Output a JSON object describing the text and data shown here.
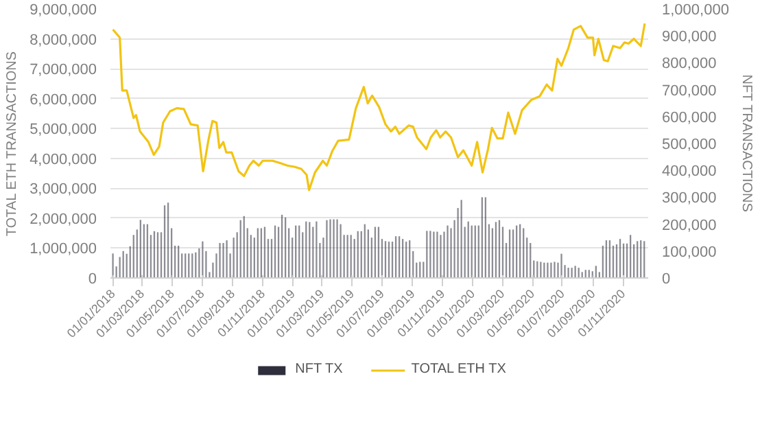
{
  "chart_data": {
    "type": "bar",
    "xlabel": null,
    "ylabel": "TOTAL ETH TRANSACTIONS",
    "y2label": "NFT TRANSACTIONS",
    "xlim": [
      "2017-12-27",
      "2020-12-22"
    ],
    "xticks": [
      {
        "value": "2018-01-01",
        "label": "01/01/2018"
      },
      {
        "value": "2018-03-01",
        "label": "01/03/2018"
      },
      {
        "value": "2018-05-01",
        "label": "01/05/2018"
      },
      {
        "value": "2018-07-01",
        "label": "01/07/2018"
      },
      {
        "value": "2018-09-01",
        "label": "01/09/2018"
      },
      {
        "value": "2018-11-01",
        "label": "01/11/2018"
      },
      {
        "value": "2019-01-01",
        "label": "01/01/2019"
      },
      {
        "value": "2019-03-01",
        "label": "01/03/2019"
      },
      {
        "value": "2019-05-01",
        "label": "01/05/2019"
      },
      {
        "value": "2019-07-01",
        "label": "01/07/2019"
      },
      {
        "value": "2019-09-01",
        "label": "01/09/2019"
      },
      {
        "value": "2019-11-01",
        "label": "01/11/2019"
      },
      {
        "value": "2020-01-01",
        "label": "01/01/2020"
      },
      {
        "value": "2020-03-01",
        "label": "01/03/2020"
      },
      {
        "value": "2020-05-01",
        "label": "01/05/2020"
      },
      {
        "value": "2020-07-01",
        "label": "01/07/2020"
      },
      {
        "value": "2020-09-01",
        "label": "01/09/2020"
      },
      {
        "value": "2020-11-01",
        "label": "01/11/2020"
      }
    ],
    "ylim": [
      0,
      9000000
    ],
    "yticks": [
      0,
      {
        "value": 1000000,
        "label": "1,000,000"
      },
      {
        "value": 2000000,
        "label": "2,000,000"
      },
      {
        "value": 3000000,
        "label": "3,000,000"
      },
      {
        "value": 4000000,
        "label": "4,000,000"
      },
      {
        "value": 5000000,
        "label": "5,000,000"
      },
      {
        "value": 6000000,
        "label": "6,000,000"
      },
      {
        "value": 7000000,
        "label": "7,000,000"
      },
      {
        "value": 8000000,
        "label": "8,000,000"
      },
      {
        "value": 9000000,
        "label": "9,000,000"
      }
    ],
    "y2lim": [
      0,
      1000000
    ],
    "y2ticks": [
      0,
      {
        "value": 100000,
        "label": "100,000"
      },
      {
        "value": 200000,
        "label": "200,000"
      },
      {
        "value": 300000,
        "label": "300,000"
      },
      {
        "value": 400000,
        "label": "400,000"
      },
      {
        "value": 500000,
        "label": "500,000"
      },
      {
        "value": 600000,
        "label": "600,000"
      },
      {
        "value": 700000,
        "label": "700,000"
      },
      {
        "value": 800000,
        "label": "800,000"
      },
      {
        "value": 900000,
        "label": "900,000"
      },
      {
        "value": 1000000,
        "label": "1,000,000"
      }
    ],
    "grid": "y",
    "legend": "bottom",
    "series": [
      {
        "name": "NFT TX",
        "axis": "y2",
        "color": "#2e2e3c",
        "x": [
          "2018-01-01",
          "2018-01-08",
          "2018-01-15",
          "2018-01-22",
          "2018-01-29",
          "2018-02-05",
          "2018-02-12",
          "2018-02-19",
          "2018-02-26",
          "2018-03-05",
          "2018-03-12",
          "2018-03-19",
          "2018-03-26",
          "2018-04-02",
          "2018-04-09",
          "2018-04-16",
          "2018-04-23",
          "2018-04-30",
          "2018-05-07",
          "2018-05-14",
          "2018-05-21",
          "2018-05-28",
          "2018-06-04",
          "2018-06-11",
          "2018-06-18",
          "2018-06-25",
          "2018-07-02",
          "2018-07-09",
          "2018-07-16",
          "2018-07-23",
          "2018-07-30",
          "2018-08-06",
          "2018-08-13",
          "2018-08-20",
          "2018-08-27",
          "2018-09-03",
          "2018-09-10",
          "2018-09-17",
          "2018-09-24",
          "2018-10-01",
          "2018-10-08",
          "2018-10-15",
          "2018-10-22",
          "2018-10-29",
          "2018-11-05",
          "2018-11-12",
          "2018-11-19",
          "2018-11-26",
          "2018-12-03",
          "2018-12-10",
          "2018-12-17",
          "2018-12-24",
          "2018-12-31",
          "2019-01-07",
          "2019-01-14",
          "2019-01-21",
          "2019-01-28",
          "2019-02-04",
          "2019-02-11",
          "2019-02-18",
          "2019-02-25",
          "2019-03-04",
          "2019-03-11",
          "2019-03-18",
          "2019-03-25",
          "2019-04-01",
          "2019-04-08",
          "2019-04-15",
          "2019-04-22",
          "2019-04-29",
          "2019-05-06",
          "2019-05-13",
          "2019-05-20",
          "2019-05-27",
          "2019-06-03",
          "2019-06-10",
          "2019-06-17",
          "2019-06-24",
          "2019-07-01",
          "2019-07-08",
          "2019-07-15",
          "2019-07-22",
          "2019-07-29",
          "2019-08-05",
          "2019-08-12",
          "2019-08-19",
          "2019-08-26",
          "2019-09-02",
          "2019-09-09",
          "2019-09-16",
          "2019-09-23",
          "2019-09-30",
          "2019-10-07",
          "2019-10-14",
          "2019-10-21",
          "2019-10-28",
          "2019-11-04",
          "2019-11-11",
          "2019-11-18",
          "2019-11-25",
          "2019-12-02",
          "2019-12-09",
          "2019-12-16",
          "2019-12-23",
          "2019-12-30",
          "2020-01-06",
          "2020-01-13",
          "2020-01-20",
          "2020-01-27",
          "2020-02-03",
          "2020-02-10",
          "2020-02-17",
          "2020-02-24",
          "2020-03-02",
          "2020-03-09",
          "2020-03-16",
          "2020-03-23",
          "2020-03-30",
          "2020-04-06",
          "2020-04-13",
          "2020-04-20",
          "2020-04-27",
          "2020-05-04",
          "2020-05-11",
          "2020-05-18",
          "2020-05-25",
          "2020-06-01",
          "2020-06-08",
          "2020-06-15",
          "2020-06-22",
          "2020-06-29",
          "2020-07-06",
          "2020-07-13",
          "2020-07-20",
          "2020-07-27",
          "2020-08-03",
          "2020-08-10",
          "2020-08-17",
          "2020-08-24",
          "2020-08-31",
          "2020-09-07",
          "2020-09-14",
          "2020-09-21",
          "2020-09-28",
          "2020-10-05",
          "2020-10-12",
          "2020-10-19",
          "2020-10-26",
          "2020-11-02",
          "2020-11-09",
          "2020-11-16",
          "2020-11-23",
          "2020-11-30",
          "2020-12-07",
          "2020-12-14"
        ],
        "values": [
          91000,
          43000,
          78000,
          100000,
          90000,
          118000,
          160000,
          180000,
          216000,
          200000,
          200000,
          160000,
          174000,
          170000,
          170000,
          270000,
          280000,
          185000,
          120000,
          120000,
          91000,
          91000,
          91000,
          91000,
          95000,
          110000,
          136000,
          100000,
          22000,
          57000,
          91000,
          130000,
          130000,
          140000,
          91000,
          150000,
          170000,
          215000,
          230000,
          185000,
          160000,
          150000,
          185000,
          185000,
          190000,
          145000,
          145000,
          195000,
          190000,
          235000,
          225000,
          185000,
          150000,
          195000,
          195000,
          170000,
          210000,
          208000,
          190000,
          210000,
          130000,
          150000,
          215000,
          218000,
          218000,
          218000,
          200000,
          160000,
          160000,
          160000,
          145000,
          174000,
          174000,
          200000,
          180000,
          150000,
          190000,
          190000,
          145000,
          137000,
          135000,
          135000,
          155000,
          155000,
          145000,
          135000,
          140000,
          100000,
          57000,
          60000,
          60000,
          175000,
          175000,
          172000,
          172000,
          160000,
          172000,
          195000,
          185000,
          215000,
          260000,
          290000,
          190000,
          210000,
          195000,
          195000,
          195000,
          300000,
          300000,
          200000,
          185000,
          208000,
          215000,
          190000,
          130000,
          180000,
          180000,
          195000,
          200000,
          185000,
          150000,
          130000,
          65000,
          62000,
          60000,
          57000,
          57000,
          57000,
          60000,
          57000,
          90000,
          48000,
          38000,
          38000,
          45000,
          38000,
          22000,
          30000,
          30000,
          25000,
          45000,
          22000,
          120000,
          140000,
          140000,
          120000,
          125000,
          145000,
          128000,
          128000,
          160000,
          125000,
          137000,
          140000,
          137000
        ]
      },
      {
        "name": "TOTAL ETH TX",
        "type": "line",
        "color": "#f2c413",
        "x": [
          "2018-01-01",
          "2018-01-15",
          "2018-01-20",
          "2018-01-29",
          "2018-02-12",
          "2018-02-17",
          "2018-02-25",
          "2018-03-14",
          "2018-03-25",
          "2018-04-05",
          "2018-04-13",
          "2018-04-27",
          "2018-05-11",
          "2018-05-25",
          "2018-06-08",
          "2018-06-22",
          "2018-07-03",
          "2018-07-14",
          "2018-07-22",
          "2018-07-30",
          "2018-08-05",
          "2018-08-13",
          "2018-08-19",
          "2018-08-30",
          "2018-09-13",
          "2018-09-24",
          "2018-10-05",
          "2018-10-13",
          "2018-10-24",
          "2018-11-01",
          "2018-11-21",
          "2018-12-07",
          "2018-12-21",
          "2019-01-04",
          "2019-01-18",
          "2019-01-29",
          "2019-02-03",
          "2019-02-15",
          "2019-03-03",
          "2019-03-11",
          "2019-03-22",
          "2019-04-03",
          "2019-04-25",
          "2019-05-09",
          "2019-05-25",
          "2019-06-02",
          "2019-06-11",
          "2019-06-25",
          "2019-07-08",
          "2019-07-19",
          "2019-07-28",
          "2019-08-05",
          "2019-08-24",
          "2019-09-02",
          "2019-09-10",
          "2019-09-29",
          "2019-10-08",
          "2019-10-19",
          "2019-10-27",
          "2019-11-07",
          "2019-11-18",
          "2019-12-02",
          "2019-12-13",
          "2019-12-30",
          "2020-01-10",
          "2020-01-21",
          "2020-02-01",
          "2020-02-09",
          "2020-02-20",
          "2020-03-02",
          "2020-03-13",
          "2020-03-27",
          "2020-04-10",
          "2020-04-29",
          "2020-05-16",
          "2020-05-30",
          "2020-06-10",
          "2020-06-21",
          "2020-06-29",
          "2020-07-13",
          "2020-07-24",
          "2020-08-07",
          "2020-08-21",
          "2020-09-01",
          "2020-09-04",
          "2020-09-12",
          "2020-09-23",
          "2020-10-01",
          "2020-10-12",
          "2020-10-26",
          "2020-11-04",
          "2020-11-12",
          "2020-11-23",
          "2020-12-07",
          "2020-12-15"
        ],
        "values": [
          8310000,
          8040000,
          6270000,
          6270000,
          5350000,
          5450000,
          4900000,
          4550000,
          4120000,
          4400000,
          5200000,
          5580000,
          5680000,
          5650000,
          5140000,
          5100000,
          3570000,
          4630000,
          5250000,
          5200000,
          4350000,
          4550000,
          4200000,
          4200000,
          3570000,
          3410000,
          3760000,
          3920000,
          3760000,
          3920000,
          3920000,
          3840000,
          3760000,
          3720000,
          3650000,
          3450000,
          2940000,
          3530000,
          3920000,
          3760000,
          4240000,
          4590000,
          4630000,
          5680000,
          6390000,
          5840000,
          6100000,
          5720000,
          5140000,
          4900000,
          5060000,
          4820000,
          5100000,
          5060000,
          4700000,
          4310000,
          4700000,
          4940000,
          4700000,
          4900000,
          4700000,
          4040000,
          4270000,
          3760000,
          4550000,
          3530000,
          4310000,
          5020000,
          4670000,
          4670000,
          5530000,
          4820000,
          5610000,
          5960000,
          6080000,
          6470000,
          6270000,
          7330000,
          7100000,
          7690000,
          8310000,
          8430000,
          8040000,
          8040000,
          7450000,
          8000000,
          7290000,
          7250000,
          7760000,
          7690000,
          7880000,
          7840000,
          8000000,
          7760000,
          8510000
        ]
      }
    ]
  }
}
